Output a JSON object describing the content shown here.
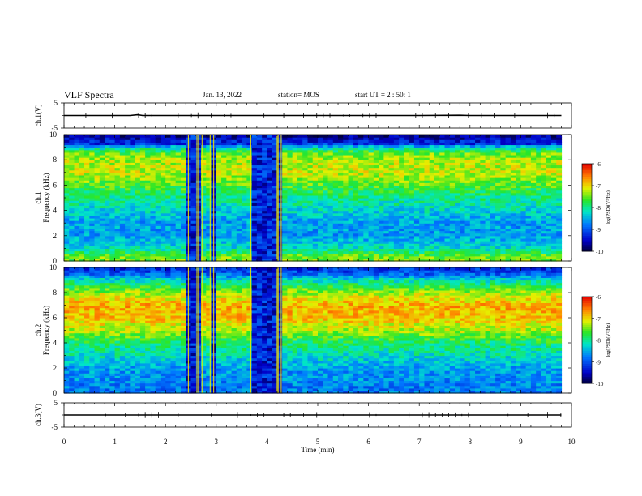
{
  "header": {
    "title": "VLF Spectra",
    "date": "Jan. 13, 2022",
    "station": "station= MOS",
    "start": "start UT = 2 : 50: 1"
  },
  "chart_data": [
    {
      "type": "line",
      "panel": "ch1-waveform",
      "ylabel": "ch.1(V)",
      "ylim": [
        -5,
        5
      ],
      "yticks": [
        "5",
        "-5"
      ],
      "xlim": [
        0,
        10
      ],
      "x": [
        0,
        1.3,
        1.45,
        1.55,
        2.0,
        3.0,
        4.0,
        5.0,
        6.0,
        7.0,
        7.8,
        8.0,
        9.0,
        9.8
      ],
      "y": [
        0,
        0,
        0.3,
        0,
        0,
        0,
        0,
        0,
        0,
        0,
        0.1,
        0,
        0,
        0
      ]
    },
    {
      "type": "heatmap",
      "panel": "ch1-spectrogram",
      "ylabel": "ch.1\nFrequency (kHz)",
      "ylabel_lines": [
        "ch.1",
        "Frequency (kHz)"
      ],
      "ylim": [
        0,
        10
      ],
      "yticks": [
        "0",
        "2",
        "4",
        "6",
        "8",
        "10"
      ],
      "xlim": [
        0,
        10
      ],
      "colorbar": {
        "label": "log(PSD)(V²/Hz)",
        "range": [
          -10,
          -6
        ],
        "ticks": [
          "-6",
          "-7",
          "-8",
          "-9",
          "-10"
        ]
      },
      "data_end_min": 9.8,
      "gaps_min": [
        [
          2.45,
          2.62
        ],
        [
          2.65,
          2.72
        ],
        [
          2.88,
          2.95
        ],
        [
          3.68,
          4.2
        ],
        [
          4.22,
          4.28
        ]
      ],
      "psd_profile": {
        "freq_khz": [
          0.4,
          1,
          2,
          3,
          4,
          5,
          6,
          7,
          8,
          8.5,
          9,
          9.3,
          10
        ],
        "log_psd": [
          -7.5,
          -8.2,
          -8.6,
          -8.6,
          -8.3,
          -8.0,
          -7.6,
          -7.2,
          -7.3,
          -7.5,
          -8.2,
          -9.2,
          -9.8
        ]
      }
    },
    {
      "type": "heatmap",
      "panel": "ch2-spectrogram",
      "ylabel": "ch.2\nFrequency (kHz)",
      "ylabel_lines": [
        "ch.2",
        "Frequency (kHz)"
      ],
      "ylim": [
        0,
        10
      ],
      "yticks": [
        "0",
        "2",
        "4",
        "6",
        "8",
        "10"
      ],
      "xlim": [
        0,
        10
      ],
      "colorbar": {
        "label": "log(PSD)(V²/Hz)",
        "range": [
          -10,
          -6
        ],
        "ticks": [
          "-6",
          "-7",
          "-8",
          "-9",
          "-10"
        ]
      },
      "data_end_min": 9.8,
      "gaps_min": [
        [
          2.45,
          2.62
        ],
        [
          2.65,
          2.72
        ],
        [
          2.88,
          2.95
        ],
        [
          3.68,
          4.2
        ],
        [
          4.22,
          4.28
        ]
      ],
      "psd_profile": {
        "freq_khz": [
          0.3,
          1,
          2,
          3,
          4,
          5,
          6,
          7,
          8,
          9,
          9.5,
          10
        ],
        "log_psd": [
          -8.8,
          -8.7,
          -8.6,
          -8.2,
          -7.9,
          -7.3,
          -6.9,
          -6.8,
          -7.3,
          -8.2,
          -8.9,
          -9.3
        ]
      }
    },
    {
      "type": "line",
      "panel": "ch3-waveform",
      "ylabel": "ch.3(V)",
      "ylim": [
        -5,
        5
      ],
      "yticks": [
        "5",
        "-5"
      ],
      "xlim": [
        0,
        10
      ],
      "xlabel": "Time (min)",
      "xticks": [
        "0",
        "1",
        "2",
        "3",
        "4",
        "5",
        "6",
        "7",
        "8",
        "9",
        "10"
      ],
      "x": [
        0,
        9.8
      ],
      "y": [
        0,
        0
      ]
    }
  ]
}
